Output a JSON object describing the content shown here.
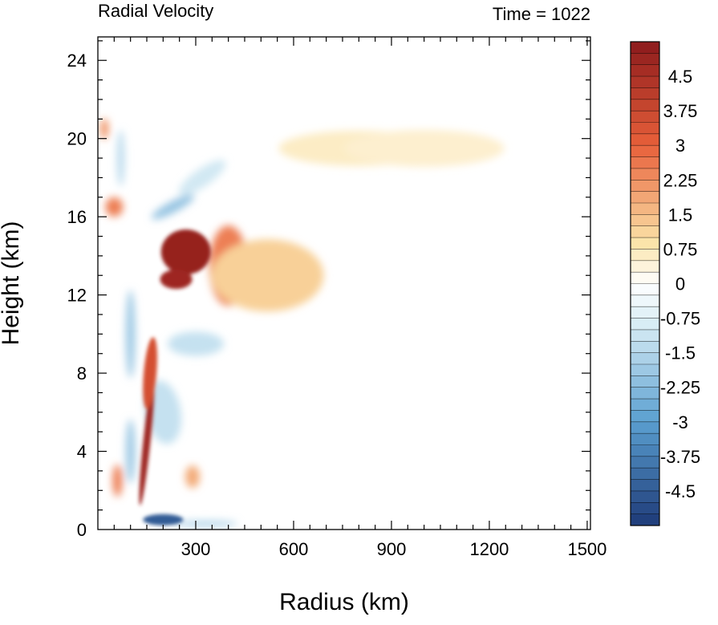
{
  "chart_data": {
    "type": "heatmap",
    "title": "Radial Velocity",
    "subtitle": "Time = 1022",
    "xlabel": "Radius (km)",
    "ylabel": "Height (km)",
    "xlim": [
      0,
      1510
    ],
    "ylim": [
      0,
      25.2
    ],
    "x_ticks": [
      300,
      600,
      900,
      1200,
      1500
    ],
    "x_tick_labels": [
      "300",
      "600",
      "900",
      "1200",
      "1500"
    ],
    "y_ticks": [
      0,
      4,
      8,
      12,
      16,
      20,
      24
    ],
    "y_tick_labels": [
      "0",
      "4",
      "8",
      "12",
      "16",
      "20",
      "24"
    ],
    "colorbar": {
      "min": -5.25,
      "max": 5.25,
      "step": 0.25,
      "labels": [
        "4.5",
        "3.75",
        "3",
        "2.25",
        "1.5",
        "0.75",
        "0",
        "-0.75",
        "-1.5",
        "-2.25",
        "-3",
        "-3.75",
        "-4.5"
      ],
      "label_values": [
        4.5,
        3.75,
        3,
        2.25,
        1.5,
        0.75,
        0,
        -0.75,
        -1.5,
        -2.25,
        -3,
        -3.75,
        -4.5
      ],
      "colors": {
        "strong_positive": "#8c1a1c",
        "positive": "#e8603a",
        "weak_positive": "#fbe3a8",
        "zero": "#ffffff",
        "weak_negative": "#d7ecf5",
        "negative": "#5a9fd0",
        "strong_negative": "#1e3a78"
      }
    },
    "features": [
      {
        "x": 270,
        "y": 14.2,
        "value": 5.0
      },
      {
        "x": 240,
        "y": 12.8,
        "value": 4.8
      },
      {
        "x": 150,
        "y": 4.5,
        "value": 4.8
      },
      {
        "x": 160,
        "y": 8.0,
        "value": 3.5
      },
      {
        "x": 400,
        "y": 13.5,
        "value": 2.5
      },
      {
        "x": 520,
        "y": 13.0,
        "value": 1.2
      },
      {
        "x": 800,
        "y": 19.5,
        "value": 0.6
      },
      {
        "x": 1000,
        "y": 19.5,
        "value": 0.5
      },
      {
        "x": 60,
        "y": 2.5,
        "value": 2.5
      },
      {
        "x": 50,
        "y": 16.5,
        "value": 2.5
      },
      {
        "x": 20,
        "y": 20.5,
        "value": 2.2
      },
      {
        "x": 290,
        "y": 2.7,
        "value": 1.8
      },
      {
        "x": 200,
        "y": 0.5,
        "value": -4.5
      },
      {
        "x": 330,
        "y": 0.3,
        "value": -1.5
      },
      {
        "x": 230,
        "y": 16.5,
        "value": -2.0
      },
      {
        "x": 100,
        "y": 10.0,
        "value": -1.8
      },
      {
        "x": 100,
        "y": 4.0,
        "value": -1.8
      },
      {
        "x": 200,
        "y": 6.0,
        "value": -1.2
      },
      {
        "x": 320,
        "y": 18.0,
        "value": -1.0
      },
      {
        "x": 300,
        "y": 9.5,
        "value": -1.2
      },
      {
        "x": 70,
        "y": 19.0,
        "value": -1.3
      }
    ]
  }
}
